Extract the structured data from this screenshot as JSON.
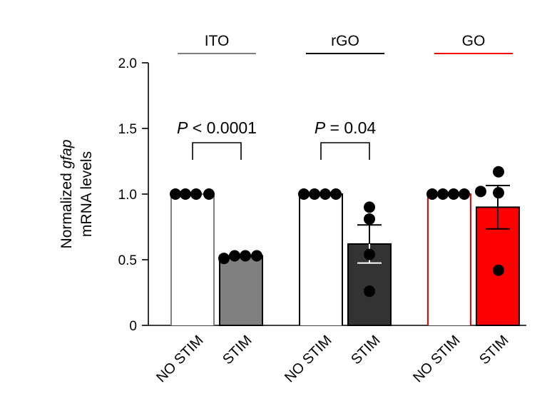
{
  "chart_data": {
    "type": "bar",
    "ylabel_line1_prefix": "Normalized ",
    "ylabel_line1_italic": "gfap",
    "ylabel_line2": "mRNA levels",
    "ylim": [
      0,
      2.0
    ],
    "yticks": [
      0,
      0.5,
      1.0,
      1.5,
      2.0
    ],
    "ytick_labels": [
      "0",
      "0.5",
      "1.0",
      "1.5",
      "2.0"
    ],
    "condition_labels": [
      "NO STIM",
      "STIM"
    ],
    "groups": [
      {
        "name": "ITO",
        "color": "#808080",
        "bars": [
          {
            "condition": "NO STIM",
            "mean": 1.0,
            "fill": "#ffffff",
            "points": [
              1.0,
              1.0,
              1.0,
              1.0
            ]
          },
          {
            "condition": "STIM",
            "mean": 0.53,
            "err": 0.0,
            "fill": "#808080",
            "points": [
              0.51,
              0.53,
              0.53,
              0.53
            ]
          }
        ],
        "comparison": {
          "p_italic": "P",
          "p_rest": " < 0.0001"
        }
      },
      {
        "name": "rGO",
        "color": "#000000",
        "bars": [
          {
            "condition": "NO STIM",
            "mean": 1.0,
            "fill": "#ffffff",
            "points": [
              1.0,
              1.0,
              1.0,
              1.0
            ]
          },
          {
            "condition": "STIM",
            "mean": 0.62,
            "err": 0.145,
            "fill": "#333333",
            "points": [
              0.9,
              0.81,
              0.54,
              0.26
            ]
          }
        ],
        "comparison": {
          "p_italic": "P",
          "p_rest": " = 0.04"
        }
      },
      {
        "name": "GO",
        "color": "#ff0000",
        "bars": [
          {
            "condition": "NO STIM",
            "mean": 1.0,
            "fill": "#ffffff",
            "points": [
              1.0,
              1.0,
              1.0,
              1.0
            ]
          },
          {
            "condition": "STIM",
            "mean": 0.9,
            "err": 0.165,
            "fill": "#ff0000",
            "points": [
              1.17,
              1.02,
              1.01,
              0.42
            ]
          }
        ],
        "comparison": null
      }
    ]
  }
}
